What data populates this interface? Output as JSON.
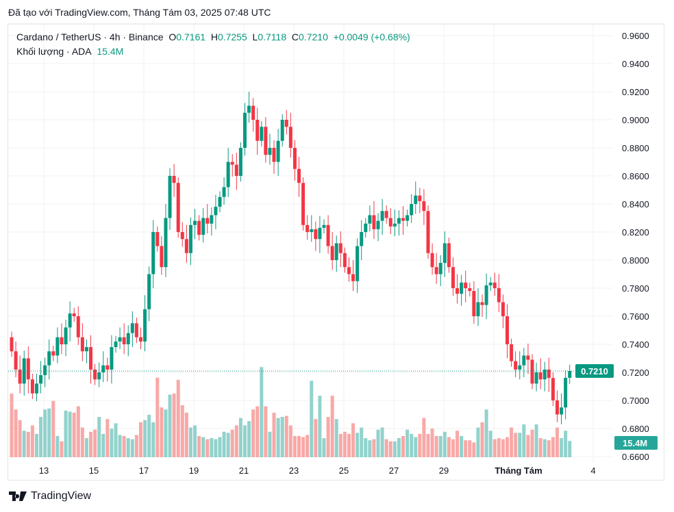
{
  "caption": "Đã tạo với TradingView.com, Tháng Tám 03, 2025 07:48 UTC",
  "legend": {
    "symbol": "Cardano / TetherUS · 4h · Binance",
    "o_label": "O",
    "o": "0.7161",
    "h_label": "H",
    "h": "0.7255",
    "l_label": "L",
    "l": "0.7118",
    "c_label": "C",
    "c": "0.7210",
    "change": "+0.0049 (+0.68%)",
    "volume_label": "Khối lượng · ADA",
    "volume": "15.4M"
  },
  "brand": "TradingView",
  "colors": {
    "up": "#089981",
    "down": "#f23645",
    "vol_up": "#92d2cc",
    "vol_down": "#f7a9a7"
  },
  "chart_data": {
    "type": "candlestick",
    "interval": "4h",
    "ylim": [
      0.66,
      0.96
    ],
    "y_ticks": [
      "0.9600",
      "0.9400",
      "0.9200",
      "0.9000",
      "0.8800",
      "0.8600",
      "0.8400",
      "0.8200",
      "0.8000",
      "0.7800",
      "0.7600",
      "0.7400",
      "0.7200",
      "0.7000",
      "0.6800",
      "0.6600"
    ],
    "x_ticks": [
      "13",
      "15",
      "17",
      "19",
      "21",
      "23",
      "25",
      "27",
      "29",
      "Tháng Tám",
      "4"
    ],
    "last_price": "0.7210",
    "last_volume": "15.4M",
    "grid": true,
    "first_open": 0.745,
    "close": [
      0.735,
      0.722,
      0.712,
      0.73,
      0.715,
      0.705,
      0.712,
      0.718,
      0.725,
      0.735,
      0.732,
      0.745,
      0.74,
      0.752,
      0.762,
      0.76,
      0.745,
      0.735,
      0.738,
      0.722,
      0.715,
      0.72,
      0.725,
      0.722,
      0.738,
      0.742,
      0.745,
      0.74,
      0.748,
      0.755,
      0.745,
      0.742,
      0.765,
      0.79,
      0.82,
      0.81,
      0.795,
      0.83,
      0.86,
      0.855,
      0.82,
      0.815,
      0.805,
      0.825,
      0.828,
      0.818,
      0.83,
      0.826,
      0.832,
      0.838,
      0.845,
      0.852,
      0.87,
      0.868,
      0.86,
      0.88,
      0.905,
      0.91,
      0.9,
      0.885,
      0.895,
      0.875,
      0.88,
      0.87,
      0.885,
      0.9,
      0.895,
      0.88,
      0.865,
      0.855,
      0.825,
      0.82,
      0.822,
      0.815,
      0.823,
      0.825,
      0.81,
      0.8,
      0.812,
      0.805,
      0.795,
      0.79,
      0.785,
      0.81,
      0.82,
      0.826,
      0.832,
      0.822,
      0.828,
      0.835,
      0.83,
      0.824,
      0.826,
      0.83,
      0.828,
      0.832,
      0.84,
      0.846,
      0.842,
      0.835,
      0.805,
      0.795,
      0.79,
      0.798,
      0.812,
      0.795,
      0.78,
      0.776,
      0.784,
      0.78,
      0.778,
      0.76,
      0.77,
      0.768,
      0.782,
      0.784,
      0.78,
      0.77,
      0.76,
      0.74,
      0.728,
      0.722,
      0.725,
      0.732,
      0.729,
      0.712,
      0.72,
      0.715,
      0.722,
      0.716,
      0.7,
      0.69,
      0.695,
      0.7161,
      0.721
    ],
    "volume_millions": [
      60,
      45,
      35,
      25,
      24,
      30,
      22,
      38,
      45,
      46,
      53,
      20,
      15,
      44,
      43,
      42,
      48,
      28,
      18,
      24,
      26,
      38,
      22,
      36,
      27,
      32,
      21,
      20,
      18,
      17,
      21,
      33,
      35,
      40,
      33,
      75,
      47,
      45,
      59,
      60,
      73,
      49,
      42,
      28,
      30,
      20,
      19,
      17,
      18,
      17,
      19,
      24,
      23,
      26,
      30,
      37,
      30,
      34,
      45,
      48,
      85,
      48,
      24,
      42,
      37,
      38,
      39,
      30,
      20,
      20,
      19,
      21,
      72,
      36,
      58,
      18,
      38,
      58,
      36,
      22,
      24,
      22,
      32,
      23,
      28,
      18,
      16,
      17,
      26,
      28,
      17,
      15,
      15,
      18,
      20,
      26,
      22,
      19,
      22,
      37,
      22,
      27,
      20,
      20,
      24,
      19,
      17,
      25,
      20,
      16,
      16,
      14,
      28,
      33,
      45,
      25,
      17,
      18,
      17,
      19,
      28,
      23,
      23,
      31,
      21,
      26,
      31,
      18,
      17,
      16,
      19,
      28,
      18,
      25,
      15.4
    ]
  }
}
